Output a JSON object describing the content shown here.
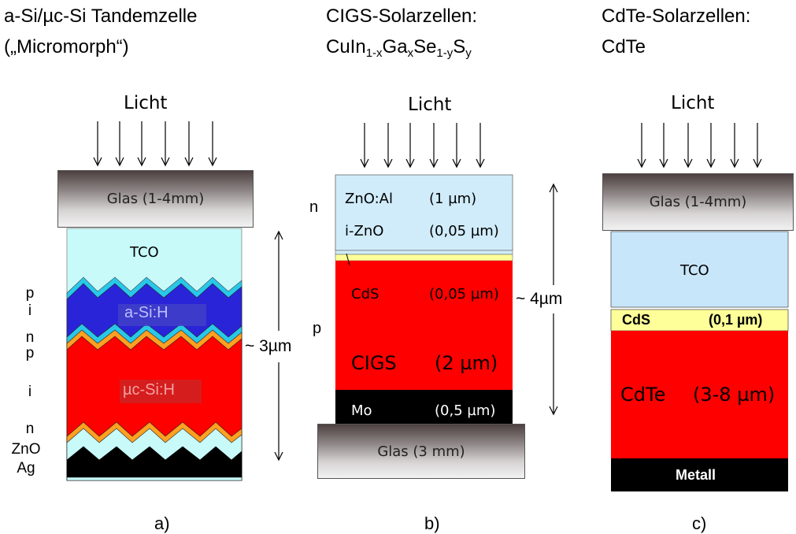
{
  "titles": {
    "a_line1": "a-Si/µc-Si Tandemzelle",
    "a_line2": "(„Micromorph“)",
    "b_line1": "CIGS-Solarzellen:",
    "b_line2_parts": [
      "CuIn",
      "1-x",
      "Ga",
      "x",
      "Se",
      "1-y",
      "S",
      "y"
    ],
    "c_line1": "CdTe-Solarzellen:",
    "c_line2": "CdTe"
  },
  "light_label": "Licht",
  "cell_a": {
    "glass": "Glas (1-4mm)",
    "tco": "TCO",
    "asi": "a-Si:H",
    "ucsi": "µc-Si:H",
    "thickness": "~ 3µm",
    "side_labels": [
      "p",
      "i",
      "n",
      "p",
      "i",
      "n",
      "ZnO",
      "Ag"
    ]
  },
  "cell_b": {
    "zno_al": "ZnO:Al",
    "zno_al_t": "(1 µm)",
    "izno": "i-ZnO",
    "izno_t": "(0,05 µm)",
    "cds": "CdS",
    "cds_t": "(0,05 µm)",
    "cigs": "CIGS",
    "cigs_t": "(2 µm)",
    "mo": "Mo",
    "mo_t": "(0,5 µm)",
    "glass": "Glas (3 mm)",
    "thickness": "~ 4µm",
    "n_label": "n",
    "p_label": "p"
  },
  "cell_c": {
    "glass": "Glas (1-4mm)",
    "tco": "TCO",
    "cds": "CdS",
    "cds_t": "(0,1 µm)",
    "cdte": "CdTe",
    "cdte_t": "(3-8 µm)",
    "metal": "Metall"
  },
  "captions": [
    "a)",
    "b)",
    "c)"
  ],
  "colors": {
    "tco": "#c8fafa",
    "asi": "#2a24d8",
    "red": "#ff0000",
    "orange": "#ffa020",
    "cyan": "#28c8e8",
    "yellow": "#ffff99",
    "zno_b": "#d0ecfa",
    "tco_c": "#c8e6fa"
  }
}
